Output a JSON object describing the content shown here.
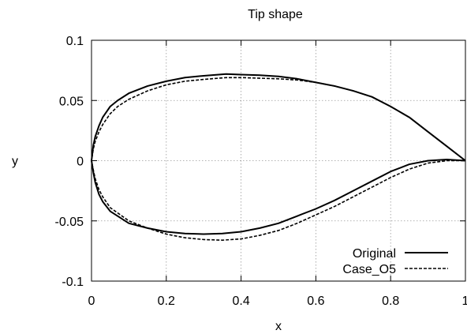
{
  "chart_data": {
    "type": "line",
    "title": "Tip shape",
    "xlabel": "x",
    "ylabel": "y",
    "xlim": [
      0,
      1
    ],
    "ylim": [
      -0.1,
      0.1
    ],
    "xticks": [
      0,
      0.2,
      0.4,
      0.6,
      0.8,
      1
    ],
    "xtick_labels": [
      "0",
      "0.2",
      "0.4",
      "0.6",
      "0.8",
      "1"
    ],
    "yticks": [
      -0.1,
      -0.05,
      0,
      0.05,
      0.1
    ],
    "ytick_labels": [
      "-0.1",
      "-0.05",
      "0",
      "0.05",
      "0.1"
    ],
    "grid": true,
    "legend_position": "bottom-right",
    "series": [
      {
        "name": "Original",
        "style": "solid",
        "color": "#000000",
        "x": [
          1.0,
          0.95,
          0.9,
          0.85,
          0.8,
          0.75,
          0.7,
          0.65,
          0.6,
          0.55,
          0.5,
          0.45,
          0.4,
          0.36,
          0.3,
          0.25,
          0.2,
          0.15,
          0.1,
          0.07,
          0.05,
          0.03,
          0.02,
          0.01,
          0.005,
          0.0,
          0.005,
          0.01,
          0.02,
          0.03,
          0.05,
          0.1,
          0.15,
          0.2,
          0.25,
          0.3,
          0.35,
          0.4,
          0.45,
          0.5,
          0.55,
          0.6,
          0.65,
          0.7,
          0.75,
          0.8,
          0.85,
          0.9,
          0.95,
          1.0
        ],
        "y": [
          0.0,
          0.012,
          0.024,
          0.036,
          0.045,
          0.053,
          0.058,
          0.062,
          0.065,
          0.068,
          0.07,
          0.071,
          0.0715,
          0.072,
          0.0705,
          0.069,
          0.066,
          0.062,
          0.056,
          0.05,
          0.045,
          0.036,
          0.029,
          0.02,
          0.013,
          0.0,
          -0.01,
          -0.018,
          -0.028,
          -0.034,
          -0.042,
          -0.052,
          -0.056,
          -0.059,
          -0.0605,
          -0.061,
          -0.0605,
          -0.059,
          -0.056,
          -0.052,
          -0.046,
          -0.04,
          -0.033,
          -0.025,
          -0.017,
          -0.009,
          -0.003,
          0.0,
          0.001,
          0.0
        ]
      },
      {
        "name": "Case_O5",
        "style": "dashed",
        "color": "#000000",
        "x": [
          1.0,
          0.95,
          0.9,
          0.85,
          0.8,
          0.75,
          0.7,
          0.65,
          0.6,
          0.55,
          0.5,
          0.45,
          0.4,
          0.36,
          0.3,
          0.25,
          0.2,
          0.15,
          0.1,
          0.07,
          0.05,
          0.03,
          0.02,
          0.01,
          0.005,
          0.0,
          0.005,
          0.01,
          0.02,
          0.03,
          0.05,
          0.1,
          0.15,
          0.2,
          0.25,
          0.3,
          0.35,
          0.4,
          0.45,
          0.5,
          0.55,
          0.6,
          0.65,
          0.7,
          0.75,
          0.8,
          0.85,
          0.9,
          0.95,
          1.0
        ],
        "y": [
          0.0,
          0.012,
          0.024,
          0.036,
          0.045,
          0.053,
          0.058,
          0.062,
          0.065,
          0.067,
          0.068,
          0.0685,
          0.069,
          0.069,
          0.0675,
          0.066,
          0.063,
          0.058,
          0.051,
          0.045,
          0.039,
          0.03,
          0.024,
          0.016,
          0.01,
          0.0,
          -0.008,
          -0.015,
          -0.024,
          -0.03,
          -0.039,
          -0.05,
          -0.056,
          -0.061,
          -0.064,
          -0.0655,
          -0.066,
          -0.065,
          -0.062,
          -0.058,
          -0.052,
          -0.045,
          -0.038,
          -0.03,
          -0.022,
          -0.014,
          -0.007,
          -0.002,
          0.0,
          0.0
        ]
      }
    ]
  }
}
